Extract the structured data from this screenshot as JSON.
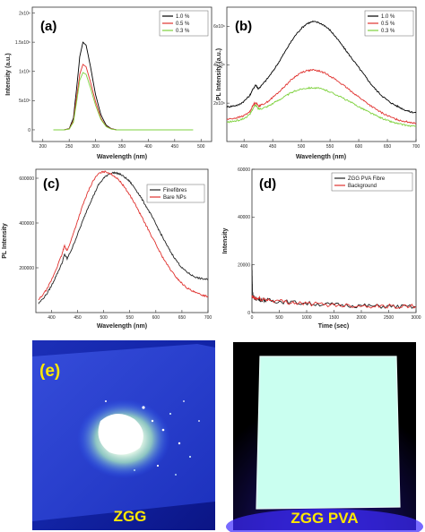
{
  "chart_data": [
    {
      "panel": "(a)",
      "type": "line",
      "xlabel": "Wavelength (nm)",
      "ylabel": "Intensity (a.u.)",
      "xlim": [
        180,
        520
      ],
      "ylim": [
        -200000.0,
        2100000.0
      ],
      "xticks": [
        200,
        250,
        300,
        350,
        400,
        450,
        500
      ],
      "yticks": [
        0,
        500000,
        1000000,
        1500000,
        2000000
      ],
      "ytick_labels": [
        "0",
        "5x10⁵",
        "1x10⁶",
        "1.5x10⁶",
        "2x10⁶"
      ],
      "legend_position": "top-right",
      "series": [
        {
          "name": "1.0 %",
          "color": "#000000",
          "x": [
            220,
            240,
            250,
            258,
            264,
            270,
            276,
            282,
            290,
            300,
            310,
            320,
            330,
            340,
            360,
            400,
            440,
            480
          ],
          "y": [
            0,
            0,
            20000,
            200000,
            700000,
            1250000,
            1500000,
            1450000,
            1100000,
            600000,
            260000,
            80000,
            20000,
            0,
            0,
            0,
            0,
            0
          ]
        },
        {
          "name": "0.5 %",
          "color": "#e0322f",
          "x": [
            220,
            240,
            250,
            258,
            264,
            270,
            276,
            282,
            290,
            300,
            310,
            320,
            330,
            340,
            360,
            400,
            440,
            480
          ],
          "y": [
            0,
            0,
            15000,
            150000,
            550000,
            950000,
            1120000,
            1080000,
            830000,
            480000,
            200000,
            60000,
            15000,
            0,
            0,
            0,
            0,
            0
          ]
        },
        {
          "name": "0.3 %",
          "color": "#7dd13c",
          "x": [
            220,
            240,
            250,
            258,
            264,
            270,
            276,
            282,
            290,
            300,
            310,
            320,
            330,
            340,
            360,
            400,
            440,
            480,
            485
          ],
          "y": [
            0,
            0,
            12000,
            130000,
            470000,
            850000,
            980000,
            950000,
            730000,
            420000,
            180000,
            55000,
            12000,
            0,
            0,
            0,
            0,
            0,
            0
          ]
        }
      ]
    },
    {
      "panel": "(b)",
      "type": "line",
      "xlabel": "Wavelength (nm)",
      "ylabel": "PL Intensity (a.u.)",
      "xlim": [
        370,
        700
      ],
      "ylim": [
        0,
        7000000.0
      ],
      "xticks": [
        400,
        450,
        500,
        550,
        600,
        650,
        700
      ],
      "yticks": [
        2000000,
        4000000,
        6000000
      ],
      "ytick_labels": [
        "2x10⁶",
        "4x10⁶",
        "6x10⁶"
      ],
      "legend_position": "top-right",
      "series": [
        {
          "name": "1.0 %",
          "color": "#000000",
          "x": [
            370,
            380,
            390,
            400,
            410,
            415,
            420,
            425,
            430,
            440,
            450,
            460,
            470,
            480,
            490,
            500,
            510,
            520,
            530,
            540,
            550,
            560,
            570,
            580,
            590,
            600,
            610,
            620,
            630,
            640,
            650,
            660,
            670,
            680,
            690,
            700
          ],
          "y": [
            1800000,
            1850000,
            1900000,
            2100000,
            2400000,
            2700000,
            2950000,
            2750000,
            2900000,
            3250000,
            3650000,
            4100000,
            4600000,
            5100000,
            5550000,
            5900000,
            6150000,
            6250000,
            6200000,
            6050000,
            5800000,
            5450000,
            5050000,
            4650000,
            4250000,
            3850000,
            3450000,
            3050000,
            2700000,
            2400000,
            2150000,
            1950000,
            1800000,
            1650000,
            1550000,
            1500000
          ]
        },
        {
          "name": "0.5 %",
          "color": "#e0322f",
          "x": [
            370,
            380,
            390,
            400,
            410,
            415,
            420,
            425,
            430,
            440,
            450,
            460,
            470,
            480,
            490,
            500,
            510,
            520,
            530,
            540,
            550,
            560,
            570,
            580,
            590,
            600,
            610,
            620,
            630,
            640,
            650,
            660,
            670,
            680,
            690,
            700
          ],
          "y": [
            1150000,
            1200000,
            1250000,
            1350000,
            1550000,
            1850000,
            2050000,
            1850000,
            1900000,
            2050000,
            2300000,
            2550000,
            2850000,
            3150000,
            3400000,
            3600000,
            3700000,
            3720000,
            3680000,
            3580000,
            3420000,
            3220000,
            3000000,
            2780000,
            2550000,
            2320000,
            2100000,
            1880000,
            1680000,
            1500000,
            1350000,
            1220000,
            1120000,
            1050000,
            1000000,
            960000
          ]
        },
        {
          "name": "0.3 %",
          "color": "#7dd13c",
          "x": [
            370,
            380,
            390,
            400,
            410,
            415,
            420,
            425,
            430,
            440,
            450,
            460,
            470,
            480,
            490,
            500,
            510,
            520,
            530,
            540,
            550,
            560,
            570,
            580,
            590,
            600,
            610,
            620,
            630,
            640,
            650,
            660,
            670,
            680,
            690,
            700
          ],
          "y": [
            1000000,
            1050000,
            1100000,
            1200000,
            1400000,
            1700000,
            1900000,
            1700000,
            1720000,
            1820000,
            1980000,
            2150000,
            2330000,
            2500000,
            2640000,
            2740000,
            2790000,
            2800000,
            2770000,
            2700000,
            2590000,
            2450000,
            2300000,
            2140000,
            1980000,
            1820000,
            1660000,
            1500000,
            1350000,
            1220000,
            1100000,
            1000000,
            920000,
            860000,
            810000,
            780000
          ]
        }
      ]
    },
    {
      "panel": "(c)",
      "type": "line",
      "xlabel": "Wavelength (nm)",
      "ylabel": "PL Intensity",
      "xlim": [
        370,
        700
      ],
      "ylim": [
        0,
        640000
      ],
      "xticks": [
        400,
        450,
        500,
        550,
        600,
        650,
        700
      ],
      "yticks": [
        200000,
        400000,
        600000
      ],
      "ytick_labels": [
        "200000",
        "400000",
        "600000"
      ],
      "legend_position": "top-right",
      "series": [
        {
          "name": "Finefibres",
          "color": "#222222",
          "x": [
            375,
            390,
            400,
            410,
            420,
            425,
            430,
            440,
            450,
            460,
            470,
            480,
            490,
            500,
            510,
            520,
            530,
            540,
            550,
            560,
            570,
            580,
            590,
            600,
            610,
            620,
            630,
            640,
            650,
            660,
            670,
            680,
            690,
            700
          ],
          "y": [
            40000,
            80000,
            120000,
            170000,
            220000,
            260000,
            240000,
            290000,
            350000,
            410000,
            470000,
            520000,
            570000,
            600000,
            620000,
            625000,
            620000,
            605000,
            585000,
            555000,
            520000,
            480000,
            440000,
            395000,
            350000,
            305000,
            265000,
            230000,
            200000,
            180000,
            165000,
            155000,
            150000,
            148000
          ]
        },
        {
          "name": "Bare NPs",
          "color": "#e0322f",
          "x": [
            375,
            390,
            400,
            410,
            420,
            425,
            430,
            440,
            450,
            460,
            470,
            480,
            490,
            500,
            510,
            520,
            530,
            540,
            550,
            560,
            570,
            580,
            590,
            600,
            610,
            620,
            630,
            640,
            650,
            660,
            670,
            680,
            690,
            700
          ],
          "y": [
            55000,
            100000,
            145000,
            200000,
            260000,
            300000,
            275000,
            340000,
            410000,
            480000,
            540000,
            590000,
            620000,
            630000,
            625000,
            610000,
            590000,
            560000,
            525000,
            485000,
            440000,
            395000,
            350000,
            305000,
            260000,
            220000,
            185000,
            155000,
            130000,
            110000,
            95000,
            85000,
            78000,
            72000
          ]
        }
      ]
    },
    {
      "panel": "(d)",
      "type": "line",
      "xlabel": "Time (sec)",
      "ylabel": "Intensity",
      "xlim": [
        0,
        3000
      ],
      "ylim": [
        0,
        60000
      ],
      "xticks": [
        0,
        500,
        1000,
        1500,
        2000,
        2500,
        3000
      ],
      "yticks": [
        0,
        20000,
        40000,
        60000
      ],
      "ytick_labels": [
        "0",
        "20000",
        "40000",
        "60000"
      ],
      "legend_position": "top-right",
      "series": [
        {
          "name": "ZGG PVA Fibre",
          "color": "#222222",
          "x": [
            0,
            5,
            10,
            20,
            40,
            80,
            150,
            250,
            400,
            600,
            900,
            1200,
            1500,
            1800,
            2100,
            2400,
            2700,
            3000
          ],
          "y": [
            20000,
            14000,
            9000,
            7000,
            6200,
            5800,
            5500,
            5200,
            4900,
            4500,
            4000,
            3600,
            3300,
            3000,
            2800,
            2600,
            2500,
            2400
          ]
        },
        {
          "name": "Background",
          "color": "#e0322f",
          "x": [
            0,
            20,
            50,
            100,
            200,
            300,
            500,
            700,
            900,
            1200,
            1500,
            1800,
            2100,
            2400,
            2700,
            3000
          ],
          "y": [
            6500,
            6300,
            6000,
            5800,
            5600,
            5300,
            4800,
            4300,
            3900,
            3500,
            3200,
            3000,
            2800,
            2700,
            2600,
            2550
          ]
        }
      ]
    }
  ],
  "photos": {
    "e": {
      "panel": "(e)",
      "caption": "ZGG",
      "panel_color": "#ffe800",
      "caption_color": "#ffe800"
    },
    "f": {
      "caption": "ZGG PVA",
      "caption_color": "#ffe800"
    }
  }
}
